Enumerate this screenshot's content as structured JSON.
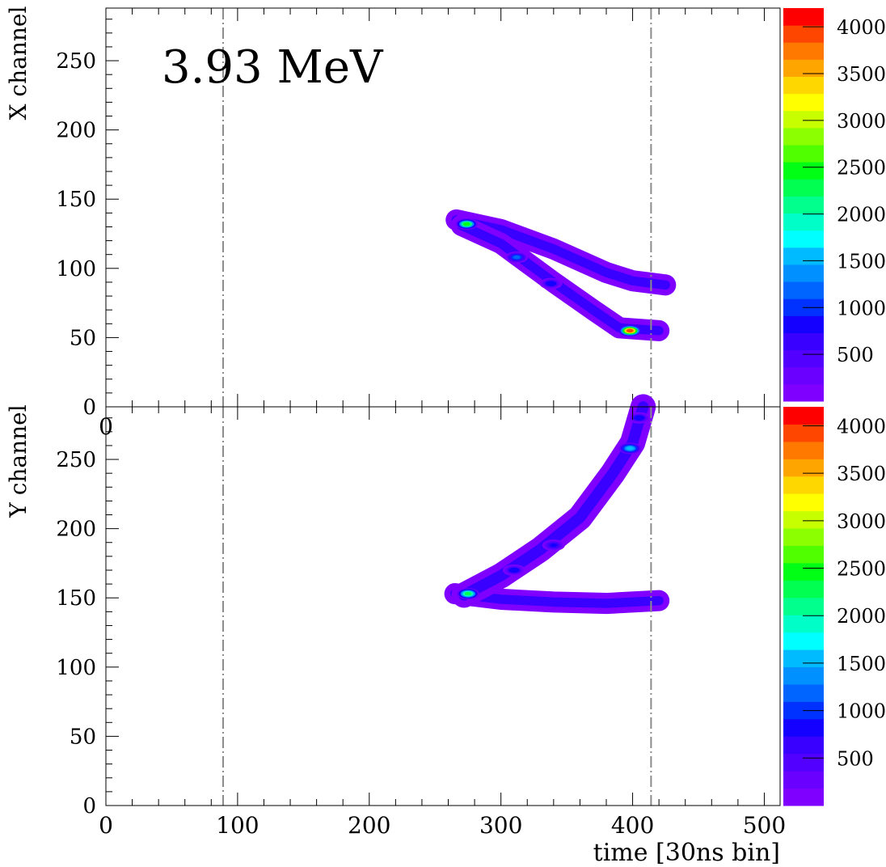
{
  "chart_data": [
    {
      "type": "heatmap",
      "panel": "top",
      "annotation": "3.93 MeV",
      "ylabel": "X channel",
      "xlabel": "",
      "xlim": [
        0,
        512
      ],
      "ylim": [
        0,
        288
      ],
      "xticks": [
        0,
        100,
        200,
        300,
        400,
        500
      ],
      "yticks": [
        0,
        50,
        100,
        150,
        200,
        250
      ],
      "xtick_labels": [
        "0"
      ],
      "ytick_labels": [
        "0",
        "50",
        "100",
        "150",
        "200",
        "250"
      ],
      "dashed_vlines": [
        89,
        414
      ],
      "track_segments": [
        {
          "points": [
            [
              266,
              135
            ],
            [
              300,
              128
            ],
            [
              340,
              114
            ],
            [
              380,
              97
            ],
            [
              400,
              91
            ],
            [
              425,
              88
            ]
          ],
          "width": 5
        },
        {
          "points": [
            [
              270,
              131
            ],
            [
              300,
              118
            ],
            [
              340,
              90
            ],
            [
              370,
              70
            ],
            [
              390,
              57
            ],
            [
              420,
              55
            ]
          ],
          "width": 5
        }
      ],
      "hot_spots": [
        {
          "x": 274,
          "y": 132,
          "value": 2400
        },
        {
          "x": 312,
          "y": 108,
          "value": 1200
        },
        {
          "x": 338,
          "y": 89,
          "value": 900
        },
        {
          "x": 398,
          "y": 55,
          "value": 4000
        }
      ]
    },
    {
      "type": "heatmap",
      "panel": "bottom",
      "ylabel": "Y channel",
      "xlabel": "time [30ns bin]",
      "xlim": [
        0,
        512
      ],
      "ylim": [
        0,
        288
      ],
      "xticks": [
        0,
        100,
        200,
        300,
        400,
        500
      ],
      "yticks": [
        0,
        50,
        100,
        150,
        200,
        250
      ],
      "xtick_labels": [
        "0",
        "100",
        "200",
        "300",
        "400",
        "500"
      ],
      "ytick_labels": [
        "0",
        "50",
        "100",
        "150",
        "200",
        "250"
      ],
      "dashed_vlines": [
        89,
        414
      ],
      "track_segments": [
        {
          "points": [
            [
              265,
              153
            ],
            [
              300,
              149
            ],
            [
              340,
              147
            ],
            [
              380,
              146
            ],
            [
              420,
              148
            ]
          ],
          "width": 5
        },
        {
          "points": [
            [
              272,
              152
            ],
            [
              300,
              166
            ],
            [
              330,
              185
            ],
            [
              360,
              208
            ],
            [
              385,
              240
            ],
            [
              400,
              262
            ],
            [
              408,
              288
            ]
          ],
          "width": 6
        }
      ],
      "hot_spots": [
        {
          "x": 275,
          "y": 153,
          "value": 2200
        },
        {
          "x": 310,
          "y": 170,
          "value": 900
        },
        {
          "x": 340,
          "y": 188,
          "value": 800
        },
        {
          "x": 398,
          "y": 258,
          "value": 1600
        },
        {
          "x": 405,
          "y": 280,
          "value": 900
        }
      ]
    }
  ],
  "colorbar": {
    "min": 0,
    "max": 4200,
    "tick_values": [
      500,
      1000,
      1500,
      2000,
      2500,
      3000,
      3500,
      4000
    ],
    "tick_labels": [
      "500",
      "1000",
      "1500",
      "2000",
      "2500",
      "3000",
      "3500",
      "4000"
    ],
    "colors": [
      "#7f00ff",
      "#6a00ff",
      "#5200ff",
      "#3a00ff",
      "#1400ff",
      "#0032ff",
      "#0064ff",
      "#0090ff",
      "#00bbff",
      "#00ffff",
      "#00ffc8",
      "#00ff8c",
      "#00ff50",
      "#00ff14",
      "#50ff00",
      "#8cff00",
      "#c8ff00",
      "#ffff00",
      "#ffd700",
      "#ffa500",
      "#ff7800",
      "#ff4600",
      "#ff0000"
    ]
  },
  "hot_colors": {
    "low": "#7f00ff",
    "mid": "#0064ff",
    "high": "#00ff8c",
    "peak": "#ff0000"
  }
}
